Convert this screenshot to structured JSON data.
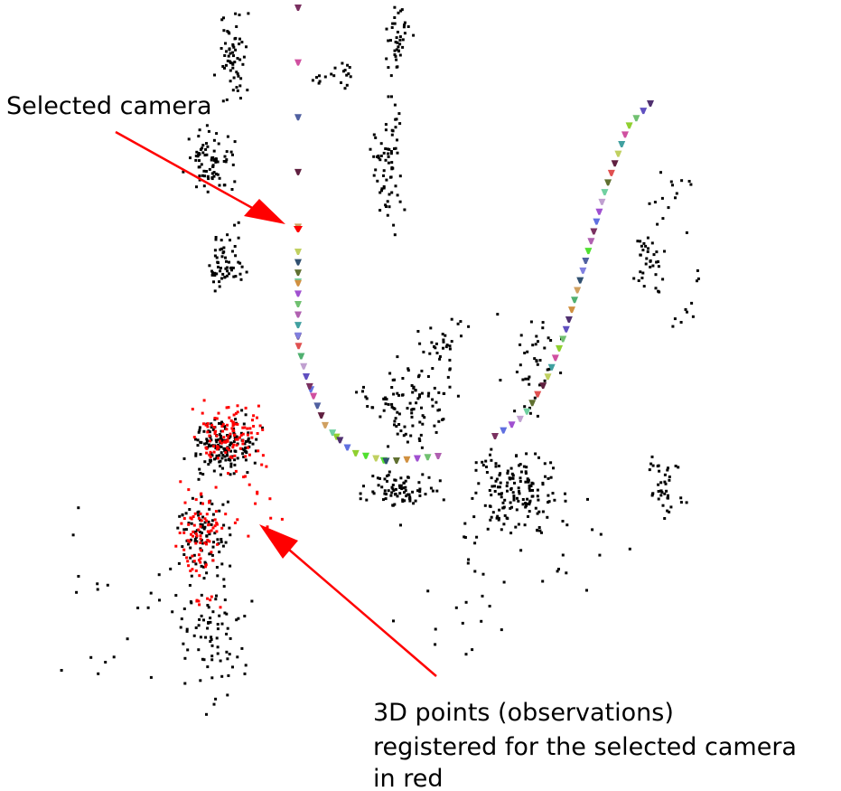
{
  "annotations": {
    "selected_camera_label": "Selected camera",
    "points_label_lines": [
      "3D points (observations)",
      "registered for the selected camera",
      "in red"
    ]
  },
  "colors": {
    "arrow": "#ff0000",
    "selected_camera": "#ff0000",
    "observed_points": "#ff0000",
    "points": "#000000"
  }
}
